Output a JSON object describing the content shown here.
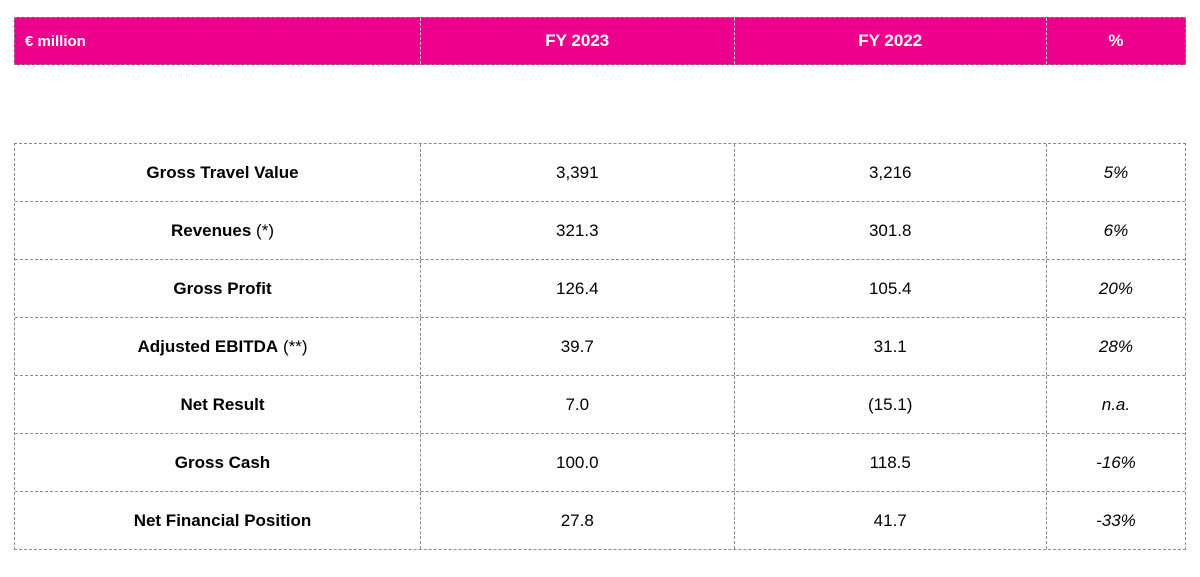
{
  "table": {
    "unit_label": "€ million",
    "columns": {
      "fy2023": "FY 2023",
      "fy2022": "FY 2022",
      "pct": "%"
    },
    "rows": [
      {
        "label": "Gross Travel Value",
        "suffix": "",
        "fy2023": "3,391",
        "fy2022": "3,216",
        "pct": "5%"
      },
      {
        "label": "Revenues",
        "suffix": " (*)",
        "fy2023": "321.3",
        "fy2022": "301.8",
        "pct": "6%"
      },
      {
        "label": "Gross Profit",
        "suffix": "",
        "fy2023": "126.4",
        "fy2022": "105.4",
        "pct": "20%"
      },
      {
        "label": "Adjusted EBITDA",
        "suffix": " (**)",
        "fy2023": "39.7",
        "fy2022": "31.1",
        "pct": "28%"
      },
      {
        "label": "Net Result",
        "suffix": "",
        "fy2023": "7.0",
        "fy2022": "(15.1)",
        "pct": "n.a."
      },
      {
        "label": "Gross Cash",
        "suffix": "",
        "fy2023": "100.0",
        "fy2022": "118.5",
        "pct": "-16%"
      },
      {
        "label": "Net Financial Position",
        "suffix": "",
        "fy2023": "27.8",
        "fy2022": "41.7",
        "pct": "-33%"
      }
    ],
    "colors": {
      "header_bg": "#EC008C",
      "header_text": "#FFFFFF",
      "border": "#8A8A8A"
    }
  }
}
